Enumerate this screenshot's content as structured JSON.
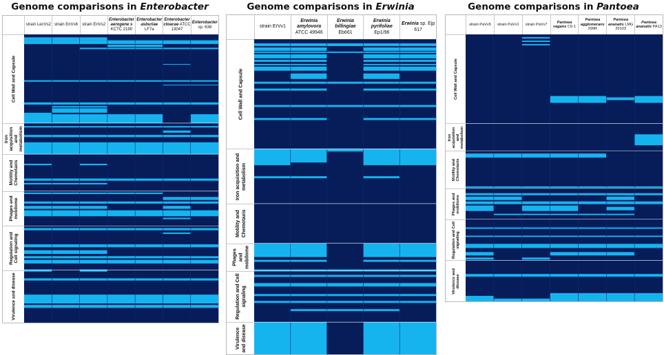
{
  "colors": {
    "absent": "#061d5a",
    "present": "#16b4ef"
  },
  "chart_data": [
    {
      "type": "heatmap",
      "title_prefix": "Genome comparisons in ",
      "genus": "Enterobacter",
      "columns": [
        {
          "plain": "strain LecVs2",
          "italic": ""
        },
        {
          "plain": "strain EnVs6",
          "italic": ""
        },
        {
          "plain": "strain EnVs2",
          "italic": ""
        },
        {
          "plain": "KCTC 2190",
          "italic": "Enterobacter aerogene s"
        },
        {
          "plain": "LF7a",
          "italic": "Enterobacter asburiae"
        },
        {
          "plain": "ATCC 13047",
          "italic": "Enterobacter cloacae"
        },
        {
          "plain": "sp. 638",
          "italic": "Enterobacter"
        }
      ],
      "categories": [
        {
          "label": "Cell Wall and Capsule",
          "rows": 120
        },
        {
          "label": "Iron acquisition and metabolism",
          "rows": 42
        },
        {
          "label": "Motility and Chemotaxis",
          "rows": 50
        },
        {
          "label": "Phages and mobilome",
          "rows": 47
        },
        {
          "label": "Regulation and Cell signaling",
          "rows": 60
        },
        {
          "label": "Virulence and disease",
          "rows": 71
        }
      ],
      "present_blocks": [
        {
          "start": 4,
          "length": 4,
          "columns": [
            0,
            1,
            2
          ]
        },
        {
          "start": 8,
          "length": 5,
          "columns": [
            0,
            1,
            2,
            3,
            4,
            5,
            6
          ]
        },
        {
          "start": 14,
          "length": 3,
          "columns": [
            3,
            4
          ]
        },
        {
          "start": 18,
          "length": 2,
          "columns": [
            2,
            3,
            4,
            5,
            6
          ]
        },
        {
          "start": 40,
          "length": 1,
          "columns": [
            5
          ]
        },
        {
          "start": 62,
          "length": 2,
          "columns": [
            0,
            1,
            2,
            3,
            4,
            5,
            6
          ]
        },
        {
          "start": 68,
          "length": 1,
          "columns": [
            5,
            6
          ]
        },
        {
          "start": 92,
          "length": 3,
          "columns": [
            0,
            1,
            2,
            3,
            4,
            5,
            6
          ]
        },
        {
          "start": 97,
          "length": 2,
          "columns": [
            1,
            2
          ]
        },
        {
          "start": 100,
          "length": 6,
          "columns": [
            1,
            2
          ]
        },
        {
          "start": 106,
          "length": 2,
          "columns": [
            0
          ]
        },
        {
          "start": 108,
          "length": 12,
          "columns": [
            0,
            1,
            2,
            3,
            4,
            6
          ]
        },
        {
          "start": 124,
          "length": 2,
          "columns": [
            0,
            1,
            2,
            3,
            4,
            5,
            6
          ]
        },
        {
          "start": 130,
          "length": 3,
          "columns": [
            5
          ]
        },
        {
          "start": 136,
          "length": 3,
          "columns": [
            0,
            1,
            2,
            3,
            4,
            5,
            6
          ]
        },
        {
          "start": 146,
          "length": 16,
          "columns": [
            0,
            1,
            2,
            3,
            4,
            5,
            6
          ]
        },
        {
          "start": 175,
          "length": 2,
          "columns": [
            0,
            2
          ]
        },
        {
          "start": 195,
          "length": 3,
          "columns": [
            0,
            1,
            2,
            3,
            4,
            5,
            6
          ]
        },
        {
          "start": 201,
          "length": 2,
          "columns": [
            0,
            1,
            2
          ]
        },
        {
          "start": 214,
          "length": 2,
          "columns": [
            0,
            1,
            2,
            3,
            4
          ]
        },
        {
          "start": 220,
          "length": 4,
          "columns": [
            5,
            6
          ]
        },
        {
          "start": 226,
          "length": 3,
          "columns": [
            0,
            1,
            2,
            3,
            4,
            5,
            6
          ]
        },
        {
          "start": 232,
          "length": 4,
          "columns": [
            0,
            1,
            2,
            5
          ]
        },
        {
          "start": 238,
          "length": 8,
          "columns": [
            0,
            1,
            2,
            3,
            4,
            5,
            6
          ]
        },
        {
          "start": 248,
          "length": 2,
          "columns": [
            5
          ]
        },
        {
          "start": 262,
          "length": 3,
          "columns": [
            0,
            1,
            2,
            3,
            4,
            5,
            6
          ]
        },
        {
          "start": 268,
          "length": 2,
          "columns": [
            5
          ]
        },
        {
          "start": 284,
          "length": 4,
          "columns": [
            0,
            1,
            2,
            3,
            4,
            5,
            6
          ]
        },
        {
          "start": 292,
          "length": 5,
          "columns": [
            0,
            1,
            2
          ]
        },
        {
          "start": 300,
          "length": 3,
          "columns": [
            0,
            1,
            2,
            3,
            4,
            5,
            6
          ]
        },
        {
          "start": 305,
          "length": 5,
          "columns": [
            0,
            1,
            2,
            3,
            4,
            5,
            6
          ]
        },
        {
          "start": 318,
          "length": 3,
          "columns": [
            0,
            2
          ]
        },
        {
          "start": 330,
          "length": 3,
          "columns": [
            0,
            1,
            2,
            3,
            4,
            5,
            6
          ]
        },
        {
          "start": 352,
          "length": 12,
          "columns": [
            0,
            1,
            2,
            3,
            4,
            5,
            6
          ]
        },
        {
          "start": 366,
          "length": 4,
          "columns": [
            0,
            1,
            2,
            3,
            4,
            5,
            6
          ]
        }
      ]
    },
    {
      "type": "heatmap",
      "title_prefix": "Genome comparisons in ",
      "genus": "Erwinia",
      "columns": [
        {
          "plain": "strain ErVv1",
          "italic": ""
        },
        {
          "plain": "ATCC 49946",
          "italic": "Erwinia amylovora"
        },
        {
          "plain": "Eb661",
          "italic": "Erwinia billingiae"
        },
        {
          "plain": "Ep1/96",
          "italic": "Erwinia pyrifoliae"
        },
        {
          "plain": "sp. Ejp 617",
          "italic": "Erwinia"
        }
      ],
      "categories": [
        {
          "label": "Cell Wall and Capsule",
          "rows": 160
        },
        {
          "label": "Iron acquisition and metabolism",
          "rows": 80
        },
        {
          "label": "Motility and Chemotaxis",
          "rows": 58
        },
        {
          "label": "Phages and mobilome",
          "rows": 40
        },
        {
          "label": "Regulation and Cell signaling",
          "rows": 75
        },
        {
          "label": "Virulence and disease",
          "rows": 47
        }
      ],
      "present_blocks": [
        {
          "start": 6,
          "length": 4,
          "columns": [
            0,
            1,
            2,
            3,
            4
          ]
        },
        {
          "start": 12,
          "length": 5,
          "columns": [
            0,
            1,
            3,
            4
          ]
        },
        {
          "start": 18,
          "length": 2,
          "columns": [
            0,
            1,
            2,
            3,
            4
          ]
        },
        {
          "start": 22,
          "length": 6,
          "columns": [
            0,
            1,
            3,
            4
          ]
        },
        {
          "start": 30,
          "length": 3,
          "columns": [
            0,
            1,
            3,
            4
          ]
        },
        {
          "start": 36,
          "length": 2,
          "columns": [
            0,
            1,
            3,
            4
          ]
        },
        {
          "start": 40,
          "length": 6,
          "columns": [
            0,
            1,
            3,
            4
          ]
        },
        {
          "start": 50,
          "length": 8,
          "columns": [
            1,
            3
          ]
        },
        {
          "start": 62,
          "length": 3,
          "columns": [
            0,
            1,
            2,
            3,
            4
          ]
        },
        {
          "start": 72,
          "length": 3,
          "columns": [
            0,
            1,
            3,
            4
          ]
        },
        {
          "start": 96,
          "length": 3,
          "columns": [
            0,
            1,
            2,
            3,
            4
          ]
        },
        {
          "start": 115,
          "length": 3,
          "columns": [
            0,
            1,
            3,
            4
          ]
        },
        {
          "start": 160,
          "length": 24,
          "columns": [
            0,
            3,
            4
          ]
        },
        {
          "start": 160,
          "length": 20,
          "columns": [
            1
          ]
        },
        {
          "start": 160,
          "length": 4,
          "columns": [
            2
          ]
        },
        {
          "start": 200,
          "length": 3,
          "columns": [
            0,
            1,
            3
          ]
        },
        {
          "start": 298,
          "length": 20,
          "columns": [
            0,
            1,
            3,
            4
          ]
        },
        {
          "start": 322,
          "length": 3,
          "columns": [
            0,
            1,
            3,
            4
          ]
        },
        {
          "start": 336,
          "length": 3,
          "columns": [
            0,
            1,
            2,
            3,
            4
          ]
        },
        {
          "start": 344,
          "length": 3,
          "columns": [
            0,
            1,
            2,
            3,
            4
          ]
        },
        {
          "start": 356,
          "length": 5,
          "columns": [
            0,
            1,
            2,
            3,
            4
          ]
        },
        {
          "start": 372,
          "length": 3,
          "columns": [
            0,
            1,
            2,
            3,
            4
          ]
        },
        {
          "start": 382,
          "length": 3,
          "columns": [
            0,
            1,
            2,
            3,
            4
          ]
        },
        {
          "start": 394,
          "length": 3,
          "columns": [
            1,
            2,
            3
          ]
        },
        {
          "start": 413,
          "length": 47,
          "columns": [
            0,
            1,
            3,
            4
          ]
        }
      ]
    },
    {
      "type": "heatmap",
      "title_prefix": "Genome comparisons in ",
      "genus": "Pantoea",
      "columns": [
        {
          "plain": "strain PaVv9",
          "italic": ""
        },
        {
          "plain": "strain PaVv1",
          "italic": ""
        },
        {
          "plain": "strain PaVv7",
          "italic": ""
        },
        {
          "plain": "C9-1",
          "italic": "Pantoea vagans"
        },
        {
          "plain": "299R",
          "italic": "Pantoea agglomerans"
        },
        {
          "plain": "LMG 20103",
          "italic": "Pantoea ananatis"
        },
        {
          "plain": "PA13",
          "italic": "Pantoea ananatis"
        }
      ],
      "categories": [
        {
          "label": "Cell Wall and Capsule",
          "rows": 130
        },
        {
          "label": "Iron acquisition and metabolism",
          "rows": 40
        },
        {
          "label": "Motility and Chemotaxis",
          "rows": 55
        },
        {
          "label": "Phages and mobilome",
          "rows": 45
        },
        {
          "label": "Regulation and Cell signaling",
          "rows": 60
        },
        {
          "label": "Virulence and disease",
          "rows": 60
        }
      ],
      "present_blocks": [
        {
          "start": 4,
          "length": 2,
          "columns": [
            2
          ]
        },
        {
          "start": 9,
          "length": 2,
          "columns": [
            2
          ]
        },
        {
          "start": 14,
          "length": 2,
          "columns": [
            2
          ]
        },
        {
          "start": 90,
          "length": 10,
          "columns": [
            3,
            4,
            6
          ]
        },
        {
          "start": 92,
          "length": 4,
          "columns": [
            5
          ]
        },
        {
          "start": 146,
          "length": 16,
          "columns": [
            6
          ]
        },
        {
          "start": 174,
          "length": 6,
          "columns": [
            0,
            1,
            2,
            3,
            4
          ]
        },
        {
          "start": 222,
          "length": 2,
          "columns": [
            0,
            1,
            2,
            3,
            4,
            5,
            6
          ]
        },
        {
          "start": 232,
          "length": 3,
          "columns": [
            0,
            1,
            2,
            3,
            4,
            5,
            6
          ]
        },
        {
          "start": 237,
          "length": 5,
          "columns": [
            0,
            1,
            5
          ]
        },
        {
          "start": 244,
          "length": 4,
          "columns": [
            0,
            1,
            2,
            3,
            4,
            5,
            6
          ]
        },
        {
          "start": 250,
          "length": 8,
          "columns": [
            0,
            2,
            3
          ]
        },
        {
          "start": 252,
          "length": 5,
          "columns": [
            5
          ]
        },
        {
          "start": 262,
          "length": 2,
          "columns": [
            1,
            2,
            3,
            4,
            5
          ]
        },
        {
          "start": 282,
          "length": 2,
          "columns": [
            0,
            1,
            2,
            3,
            4,
            5,
            6
          ]
        },
        {
          "start": 294,
          "length": 2,
          "columns": [
            0,
            1,
            2,
            3,
            4,
            5,
            6
          ]
        },
        {
          "start": 306,
          "length": 6,
          "columns": [
            0,
            1,
            2,
            3,
            4,
            5,
            6
          ]
        },
        {
          "start": 318,
          "length": 5,
          "columns": [
            0,
            3,
            4,
            5
          ]
        },
        {
          "start": 326,
          "length": 3,
          "columns": [
            0,
            2
          ]
        },
        {
          "start": 350,
          "length": 4,
          "columns": [
            0,
            1,
            2,
            3,
            4,
            5,
            6
          ]
        },
        {
          "start": 378,
          "length": 8,
          "columns": [
            3,
            4,
            5,
            6
          ]
        },
        {
          "start": 382,
          "length": 4,
          "columns": [
            0
          ]
        },
        {
          "start": 386,
          "length": 4,
          "columns": [
            0,
            1,
            2,
            3,
            4,
            5,
            6
          ]
        }
      ]
    }
  ]
}
